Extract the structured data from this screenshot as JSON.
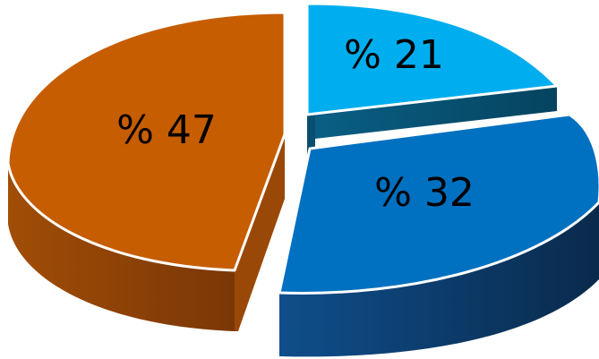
{
  "chart_data": {
    "type": "pie",
    "style": "3d-exploded",
    "title": "",
    "slices": [
      {
        "value": 21,
        "label": "% 21",
        "top_color": "#00AEEF",
        "side_color": "#0A5F86",
        "edge_color": "#FFFFFF"
      },
      {
        "value": 32,
        "label": "% 32",
        "top_color": "#0070C0",
        "side_color": "#0B3A68",
        "edge_color": "#FFFFFF"
      },
      {
        "value": 47,
        "label": "% 47",
        "top_color": "#C65D00",
        "side_color": "#8A3E06",
        "edge_color": "#FFFFFF"
      }
    ]
  }
}
